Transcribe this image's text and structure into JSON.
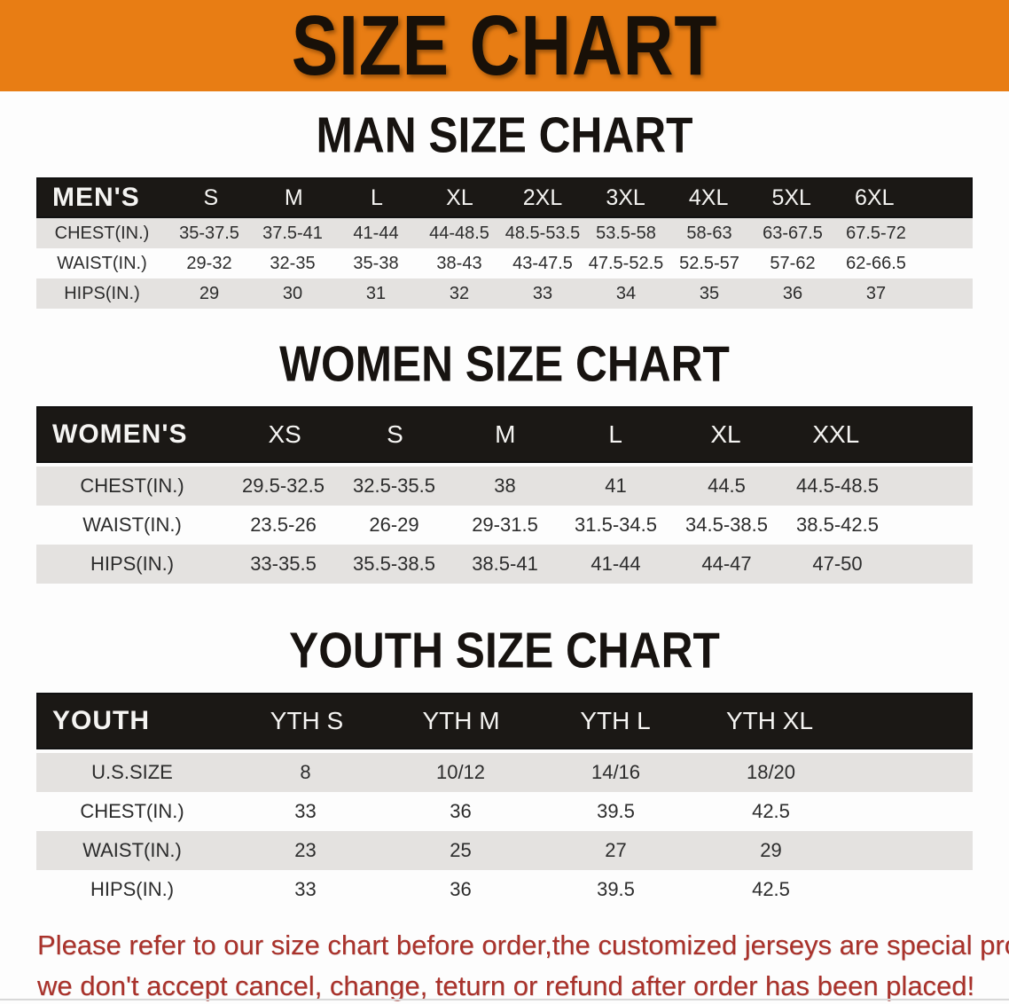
{
  "banner": {
    "title": "SIZE CHART"
  },
  "colors": {
    "banner_bg": "#E87D14",
    "banner_text": "#181008",
    "table_header_bg": "#1B1815",
    "table_header_text": "#F5F4F2",
    "row_stripe_gray": "#E4E2E0",
    "footer_text_red": "#A9322B"
  },
  "sections": {
    "men": {
      "heading": "MAN SIZE CHART",
      "table": {
        "label": "MEN'S",
        "sizes": [
          "S",
          "M",
          "L",
          "XL",
          "2XL",
          "3XL",
          "4XL",
          "5XL",
          "6XL"
        ],
        "rows": [
          {
            "label": "CHEST(IN.)",
            "values": [
              "35-37.5",
              "37.5-41",
              "41-44",
              "44-48.5",
              "48.5-53.5",
              "53.5-58",
              "58-63",
              "63-67.5",
              "67.5-72"
            ]
          },
          {
            "label": "WAIST(IN.)",
            "values": [
              "29-32",
              "32-35",
              "35-38",
              "38-43",
              "43-47.5",
              "47.5-52.5",
              "52.5-57",
              "57-62",
              "62-66.5"
            ]
          },
          {
            "label": "HIPS(IN.)",
            "values": [
              "29",
              "30",
              "31",
              "32",
              "33",
              "34",
              "35",
              "36",
              "37"
            ]
          }
        ]
      }
    },
    "women": {
      "heading": "WOMEN SIZE CHART",
      "table": {
        "label": "WOMEN'S",
        "sizes": [
          "XS",
          "S",
          "M",
          "L",
          "XL",
          "XXL"
        ],
        "rows": [
          {
            "label": "CHEST(IN.)",
            "values": [
              "29.5-32.5",
              "32.5-35.5",
              "38",
              "41",
              "44.5",
              "44.5-48.5"
            ]
          },
          {
            "label": "WAIST(IN.)",
            "values": [
              "23.5-26",
              "26-29",
              "29-31.5",
              "31.5-34.5",
              "34.5-38.5",
              "38.5-42.5"
            ]
          },
          {
            "label": "HIPS(IN.)",
            "values": [
              "33-35.5",
              "35.5-38.5",
              "38.5-41",
              "41-44",
              "44-47",
              "47-50"
            ]
          }
        ]
      }
    },
    "youth": {
      "heading": "YOUTH SIZE CHART",
      "table": {
        "label": "YOUTH",
        "sizes": [
          "YTH S",
          "YTH M",
          "YTH L",
          "YTH XL"
        ],
        "rows": [
          {
            "label": "U.S.SIZE",
            "values": [
              "8",
              "10/12",
              "14/16",
              "18/20"
            ]
          },
          {
            "label": "CHEST(IN.)",
            "values": [
              "33",
              "36",
              "39.5",
              "42.5"
            ]
          },
          {
            "label": "WAIST(IN.)",
            "values": [
              "23",
              "25",
              "27",
              "29"
            ]
          },
          {
            "label": "HIPS(IN.)",
            "values": [
              "33",
              "36",
              "39.5",
              "42.5"
            ]
          }
        ]
      }
    }
  },
  "footer": {
    "line1": "Please refer to our size chart before order,the customized jerseys are special products,",
    "line2": "we don't accept cancel, change, teturn or refund after order has been placed!"
  }
}
